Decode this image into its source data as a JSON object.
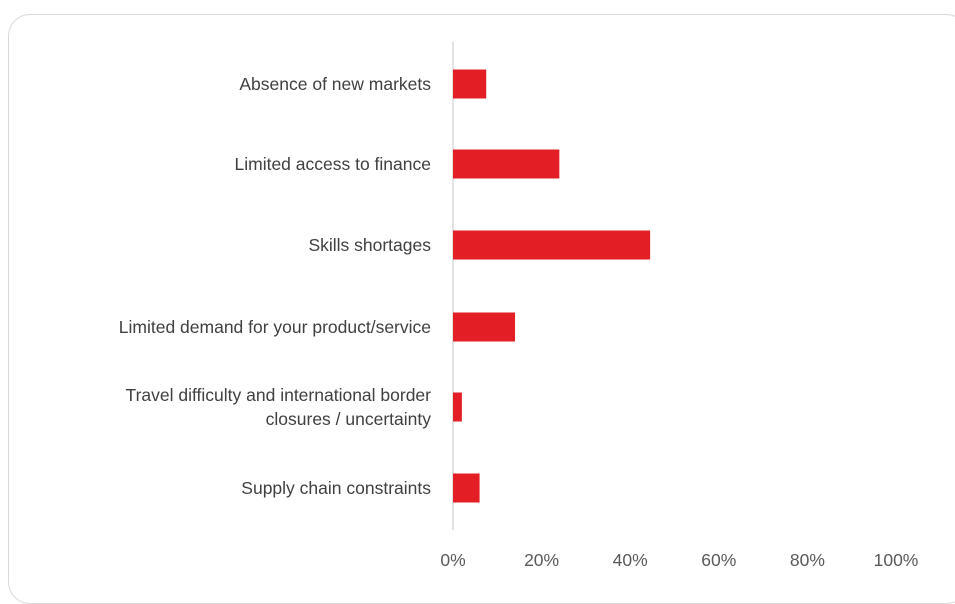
{
  "chart_data": {
    "type": "bar",
    "orientation": "horizontal",
    "categories": [
      [
        "Absence of new markets"
      ],
      [
        "Limited access to finance"
      ],
      [
        "Skills shortages"
      ],
      [
        "Limited demand for your product/service"
      ],
      [
        "Travel difficulty and international border",
        "closures / uncertainty"
      ],
      [
        "Supply chain constraints"
      ]
    ],
    "values": [
      7.5,
      24,
      44.5,
      14,
      2,
      6
    ],
    "xlim": [
      0,
      100
    ],
    "xticks": [
      "0%",
      "20%",
      "40%",
      "60%",
      "80%",
      "100%"
    ],
    "xtick_values": [
      0,
      20,
      40,
      60,
      80,
      100
    ],
    "bar_color": "#e31e24",
    "axis_color": "#d9d9d9",
    "grid": false,
    "legend": "none"
  }
}
